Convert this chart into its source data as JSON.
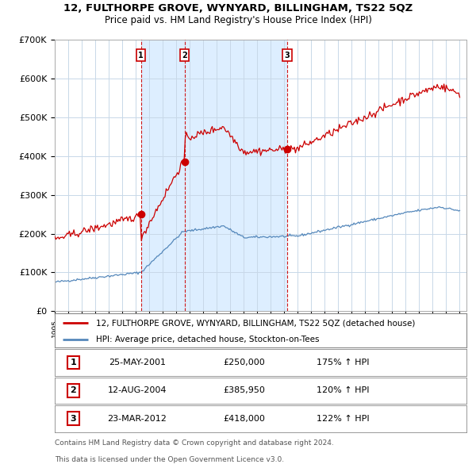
{
  "title": "12, FULTHORPE GROVE, WYNYARD, BILLINGHAM, TS22 5QZ",
  "subtitle": "Price paid vs. HM Land Registry's House Price Index (HPI)",
  "legend_line1": "12, FULTHORPE GROVE, WYNYARD, BILLINGHAM, TS22 5QZ (detached house)",
  "legend_line2": "HPI: Average price, detached house, Stockton-on-Tees",
  "footnote1": "Contains HM Land Registry data © Crown copyright and database right 2024.",
  "footnote2": "This data is licensed under the Open Government Licence v3.0.",
  "sales": [
    {
      "num": 1,
      "date": "25-MAY-2001",
      "price": "£250,000",
      "hpi": "175% ↑ HPI",
      "year": 2001.38
    },
    {
      "num": 2,
      "date": "12-AUG-2004",
      "price": "£385,950",
      "hpi": "120% ↑ HPI",
      "year": 2004.61
    },
    {
      "num": 3,
      "date": "23-MAR-2012",
      "price": "£418,000",
      "hpi": "122% ↑ HPI",
      "year": 2012.22
    }
  ],
  "sale_values": [
    250000,
    385950,
    418000
  ],
  "sale_years": [
    2001.38,
    2004.61,
    2012.22
  ],
  "red_line_color": "#cc0000",
  "blue_line_color": "#5588bb",
  "shade_color": "#ddeeff",
  "dashed_line_color": "#cc0000",
  "background_color": "#ffffff",
  "grid_color": "#c8d8e8",
  "ylim": [
    0,
    700000
  ],
  "yticks": [
    0,
    100000,
    200000,
    300000,
    400000,
    500000,
    600000,
    700000
  ],
  "ytick_labels": [
    "£0",
    "£100K",
    "£200K",
    "£300K",
    "£400K",
    "£500K",
    "£600K",
    "£700K"
  ],
  "xlim_start": 1995,
  "xlim_end": 2025.5
}
